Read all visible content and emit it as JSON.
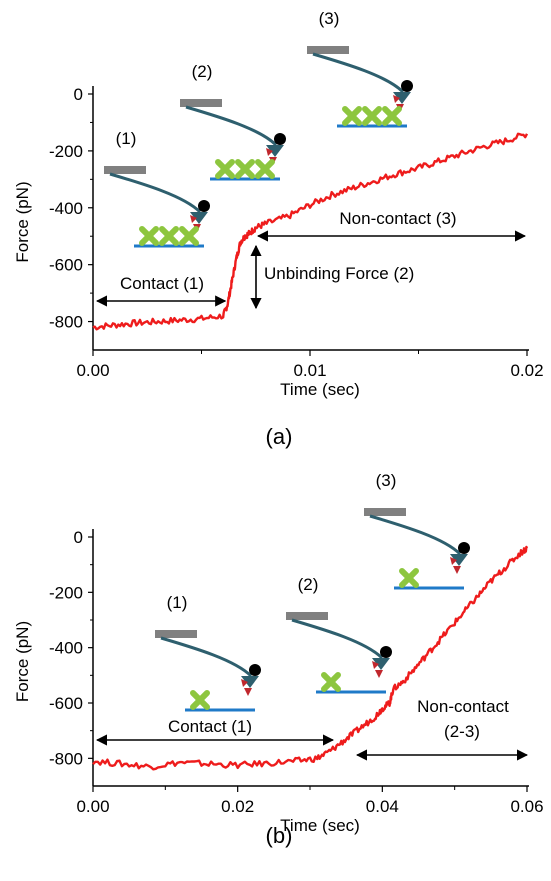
{
  "colors": {
    "trace": "#ee1c1c",
    "cantilever": "#808080",
    "arm": "#2e5f6e",
    "substrate": "#1f7ac8",
    "receptor": "#8dc63f",
    "ligand": "#c0272d",
    "tip": "#000000"
  },
  "icons": [
    "afm-cantilever-icon",
    "receptor-cross-icon",
    "ligand-triangle-icon",
    "double-arrow-icon"
  ],
  "chart_data": [
    {
      "panel": "(a)",
      "type": "line",
      "xlabel": "Time (sec)",
      "ylabel": "Force (pN)",
      "xlim": [
        0,
        0.02
      ],
      "ylim": [
        -900,
        0
      ],
      "xticks": [
        0,
        0.01,
        0.02
      ],
      "xtick_labels": [
        "0.00",
        "0.01",
        "0.02"
      ],
      "yticks": [
        0,
        -200,
        -400,
        -600,
        -800
      ],
      "ytick_labels": [
        "0",
        "-200",
        "-400",
        "-600",
        "-800"
      ],
      "grid": false,
      "series": [
        {
          "x": [
            0,
            0.001,
            0.002,
            0.003,
            0.004,
            0.005,
            0.006,
            0.0062,
            0.0064,
            0.0066,
            0.0068,
            0.007,
            0.0072,
            0.0075,
            0.008,
            0.009,
            0.01,
            0.011,
            0.012,
            0.013,
            0.014,
            0.015,
            0.016,
            0.017,
            0.018,
            0.019,
            0.02
          ],
          "y": [
            -820,
            -812,
            -805,
            -800,
            -795,
            -790,
            -780,
            -740,
            -660,
            -580,
            -520,
            -500,
            -490,
            -470,
            -455,
            -430,
            -390,
            -355,
            -330,
            -305,
            -280,
            -260,
            -235,
            -210,
            -185,
            -165,
            -140
          ]
        }
      ],
      "annotations": [
        {
          "label": "(1)",
          "text": "Contact (1)",
          "x_start": 0.0,
          "x_end": 0.006,
          "y": -735
        },
        {
          "label": "(2)",
          "text": "Unbinding Force (2)",
          "x": 0.0076,
          "y_start": -790,
          "y_end": -575
        },
        {
          "label": "(3)",
          "text": "Non-contact (3)",
          "x_start": 0.0073,
          "x_end": 0.02,
          "y": -510
        }
      ]
    },
    {
      "panel": "(b)",
      "type": "line",
      "xlabel": "Time (sec)",
      "ylabel": "Force (pN)",
      "xlim": [
        0,
        0.06
      ],
      "ylim": [
        -900,
        0
      ],
      "xticks": [
        0,
        0.02,
        0.04,
        0.06
      ],
      "xtick_labels": [
        "0.00",
        "0.02",
        "0.04",
        "0.06"
      ],
      "yticks": [
        0,
        -200,
        -400,
        -600,
        -800
      ],
      "ytick_labels": [
        "0",
        "-200",
        "-400",
        "-600",
        "-800"
      ],
      "grid": false,
      "series": [
        {
          "x": [
            0,
            0.004,
            0.008,
            0.012,
            0.016,
            0.02,
            0.024,
            0.028,
            0.031,
            0.033,
            0.035,
            0.037,
            0.039,
            0.04,
            0.041,
            0.0415,
            0.043,
            0.045,
            0.047,
            0.049,
            0.051,
            0.053,
            0.055,
            0.057,
            0.059,
            0.06
          ],
          "y": [
            -810,
            -820,
            -830,
            -815,
            -820,
            -825,
            -818,
            -810,
            -800,
            -770,
            -730,
            -690,
            -650,
            -620,
            -600,
            -550,
            -520,
            -460,
            -400,
            -340,
            -280,
            -220,
            -160,
            -110,
            -60,
            -40
          ]
        }
      ],
      "annotations": [
        {
          "label": "(1)",
          "text": "Contact (1)",
          "x_start": 0.0,
          "x_end": 0.033,
          "y": -720
        },
        {
          "label": "(2)",
          "text": "",
          "x": 0.041,
          "y": -600
        },
        {
          "label": "(3)",
          "text": "Non-contact",
          "text2": "(2-3)",
          "x_start": 0.0365,
          "x_end": 0.06,
          "y": -790
        }
      ]
    }
  ]
}
